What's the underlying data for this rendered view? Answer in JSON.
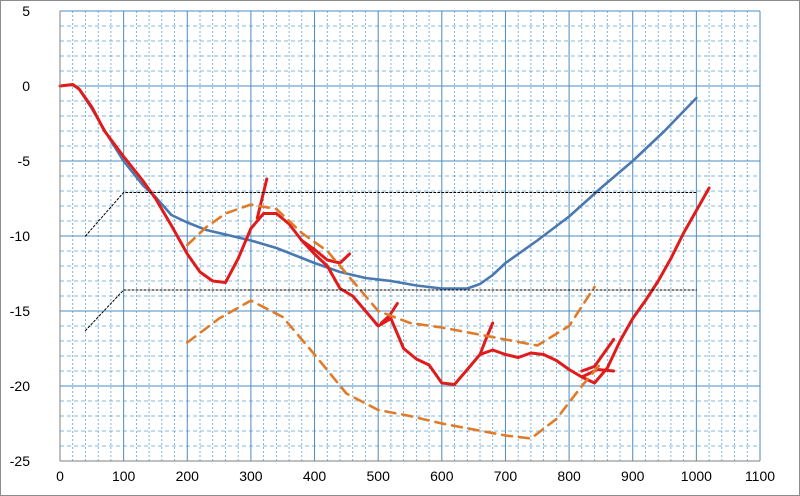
{
  "chart_data": {
    "type": "line",
    "title": "",
    "xlabel": "",
    "ylabel": "",
    "xlim": [
      0,
      1100
    ],
    "ylim": [
      -25,
      5
    ],
    "x_ticks": [
      "0",
      "100",
      "200",
      "300",
      "400",
      "500",
      "600",
      "700",
      "800",
      "900",
      "1000",
      "1100"
    ],
    "y_ticks": [
      "5",
      "0",
      "-5",
      "-10",
      "-15",
      "-20",
      "-25"
    ],
    "grid": {
      "major": true,
      "minor": true,
      "minor_style": "dashed"
    },
    "legend": "none",
    "series": [
      {
        "color": "#4a78b0",
        "style": "solid",
        "points": [
          [
            0,
            0
          ],
          [
            20,
            0.1
          ],
          [
            30,
            -0.2
          ],
          [
            50,
            -1.5
          ],
          [
            75,
            -3.3
          ],
          [
            100,
            -5.0
          ],
          [
            130,
            -6.6
          ],
          [
            150,
            -7.4
          ],
          [
            175,
            -8.6
          ],
          [
            200,
            -9.1
          ],
          [
            230,
            -9.6
          ],
          [
            260,
            -9.9
          ],
          [
            300,
            -10.3
          ],
          [
            340,
            -10.8
          ],
          [
            370,
            -11.3
          ],
          [
            400,
            -11.8
          ],
          [
            440,
            -12.4
          ],
          [
            480,
            -12.8
          ],
          [
            520,
            -13.0
          ],
          [
            560,
            -13.3
          ],
          [
            600,
            -13.5
          ],
          [
            640,
            -13.5
          ],
          [
            660,
            -13.2
          ],
          [
            680,
            -12.6
          ],
          [
            700,
            -11.8
          ],
          [
            750,
            -10.3
          ],
          [
            800,
            -8.7
          ],
          [
            850,
            -6.8
          ],
          [
            900,
            -5.0
          ],
          [
            950,
            -3.0
          ],
          [
            1000,
            -0.8
          ]
        ]
      },
      {
        "color": "#e01b1b",
        "style": "solid",
        "points": [
          [
            0,
            0
          ],
          [
            20,
            0.1
          ],
          [
            30,
            -0.2
          ],
          [
            50,
            -1.4
          ],
          [
            70,
            -3.0
          ],
          [
            100,
            -4.7
          ],
          [
            130,
            -6.3
          ],
          [
            150,
            -7.5
          ],
          [
            175,
            -9.3
          ],
          [
            200,
            -11.2
          ],
          [
            220,
            -12.4
          ],
          [
            240,
            -13.0
          ],
          [
            260,
            -13.1
          ],
          [
            280,
            -11.5
          ],
          [
            300,
            -9.5
          ],
          [
            320,
            -8.5
          ],
          [
            340,
            -8.5
          ],
          [
            360,
            -9.2
          ],
          [
            380,
            -10.3
          ],
          [
            400,
            -11.2
          ],
          [
            420,
            -12.0
          ],
          [
            440,
            -13.5
          ],
          [
            460,
            -14.0
          ],
          [
            480,
            -15.0
          ],
          [
            500,
            -16.0
          ],
          [
            520,
            -15.5
          ],
          [
            540,
            -17.5
          ],
          [
            560,
            -18.2
          ],
          [
            580,
            -18.6
          ],
          [
            600,
            -19.8
          ],
          [
            620,
            -19.9
          ],
          [
            640,
            -18.9
          ],
          [
            660,
            -17.9
          ],
          [
            680,
            -17.6
          ],
          [
            700,
            -17.9
          ],
          [
            720,
            -18.1
          ],
          [
            740,
            -17.8
          ],
          [
            760,
            -17.9
          ],
          [
            780,
            -18.3
          ],
          [
            800,
            -18.9
          ],
          [
            820,
            -19.4
          ],
          [
            840,
            -19.8
          ],
          [
            860,
            -18.8
          ],
          [
            880,
            -17.0
          ],
          [
            900,
            -15.5
          ],
          [
            920,
            -14.3
          ],
          [
            940,
            -13.0
          ],
          [
            960,
            -11.5
          ],
          [
            980,
            -9.8
          ],
          [
            1000,
            -8.3
          ],
          [
            1020,
            -6.8
          ]
        ]
      },
      {
        "color": "#e01b1b",
        "style": "solid",
        "points": [
          [
            310,
            -8.8
          ],
          [
            325,
            -6.2
          ]
        ]
      },
      {
        "color": "#e01b1b",
        "style": "solid",
        "points": [
          [
            380,
            -10.3
          ],
          [
            400,
            -10.9
          ],
          [
            420,
            -11.6
          ],
          [
            440,
            -11.8
          ],
          [
            455,
            -11.2
          ]
        ]
      },
      {
        "color": "#e01b1b",
        "style": "solid",
        "points": [
          [
            505,
            -15.8
          ],
          [
            518,
            -15.3
          ],
          [
            530,
            -14.5
          ]
        ]
      },
      {
        "color": "#e01b1b",
        "style": "solid",
        "points": [
          [
            660,
            -17.9
          ],
          [
            670,
            -16.8
          ],
          [
            680,
            -15.8
          ]
        ]
      },
      {
        "color": "#e01b1b",
        "style": "solid",
        "points": [
          [
            820,
            -19.0
          ],
          [
            840,
            -18.7
          ],
          [
            870,
            -16.9
          ]
        ]
      },
      {
        "color": "#e01b1b",
        "style": "solid",
        "points": [
          [
            820,
            -19.4
          ],
          [
            845,
            -18.9
          ],
          [
            870,
            -19.0
          ]
        ]
      },
      {
        "color": "#e07b2a",
        "style": "dashed",
        "points": [
          [
            200,
            -10.6
          ],
          [
            230,
            -9.4
          ],
          [
            260,
            -8.5
          ],
          [
            300,
            -7.9
          ],
          [
            340,
            -8.2
          ],
          [
            380,
            -9.8
          ],
          [
            420,
            -11.0
          ],
          [
            460,
            -13.0
          ],
          [
            500,
            -15.0
          ],
          [
            550,
            -15.8
          ],
          [
            600,
            -16.1
          ],
          [
            650,
            -16.5
          ],
          [
            700,
            -16.9
          ],
          [
            750,
            -17.3
          ],
          [
            800,
            -16.0
          ],
          [
            840,
            -13.4
          ]
        ]
      },
      {
        "color": "#e07b2a",
        "style": "dashed",
        "points": [
          [
            200,
            -17.1
          ],
          [
            250,
            -15.5
          ],
          [
            300,
            -14.3
          ],
          [
            350,
            -15.4
          ],
          [
            400,
            -17.9
          ],
          [
            450,
            -20.5
          ],
          [
            500,
            -21.6
          ],
          [
            550,
            -22.0
          ],
          [
            600,
            -22.5
          ],
          [
            650,
            -22.9
          ],
          [
            700,
            -23.3
          ],
          [
            740,
            -23.5
          ],
          [
            780,
            -22.2
          ],
          [
            820,
            -20.0
          ],
          [
            850,
            -18.5
          ]
        ]
      },
      {
        "color": "#000000",
        "style": "dotted",
        "points": [
          [
            40,
            -10.0
          ],
          [
            100,
            -7.1
          ],
          [
            1000,
            -7.1
          ]
        ]
      },
      {
        "color": "#000000",
        "style": "dotted",
        "points": [
          [
            40,
            -16.3
          ],
          [
            100,
            -13.6
          ],
          [
            1000,
            -13.6
          ]
        ]
      }
    ]
  }
}
